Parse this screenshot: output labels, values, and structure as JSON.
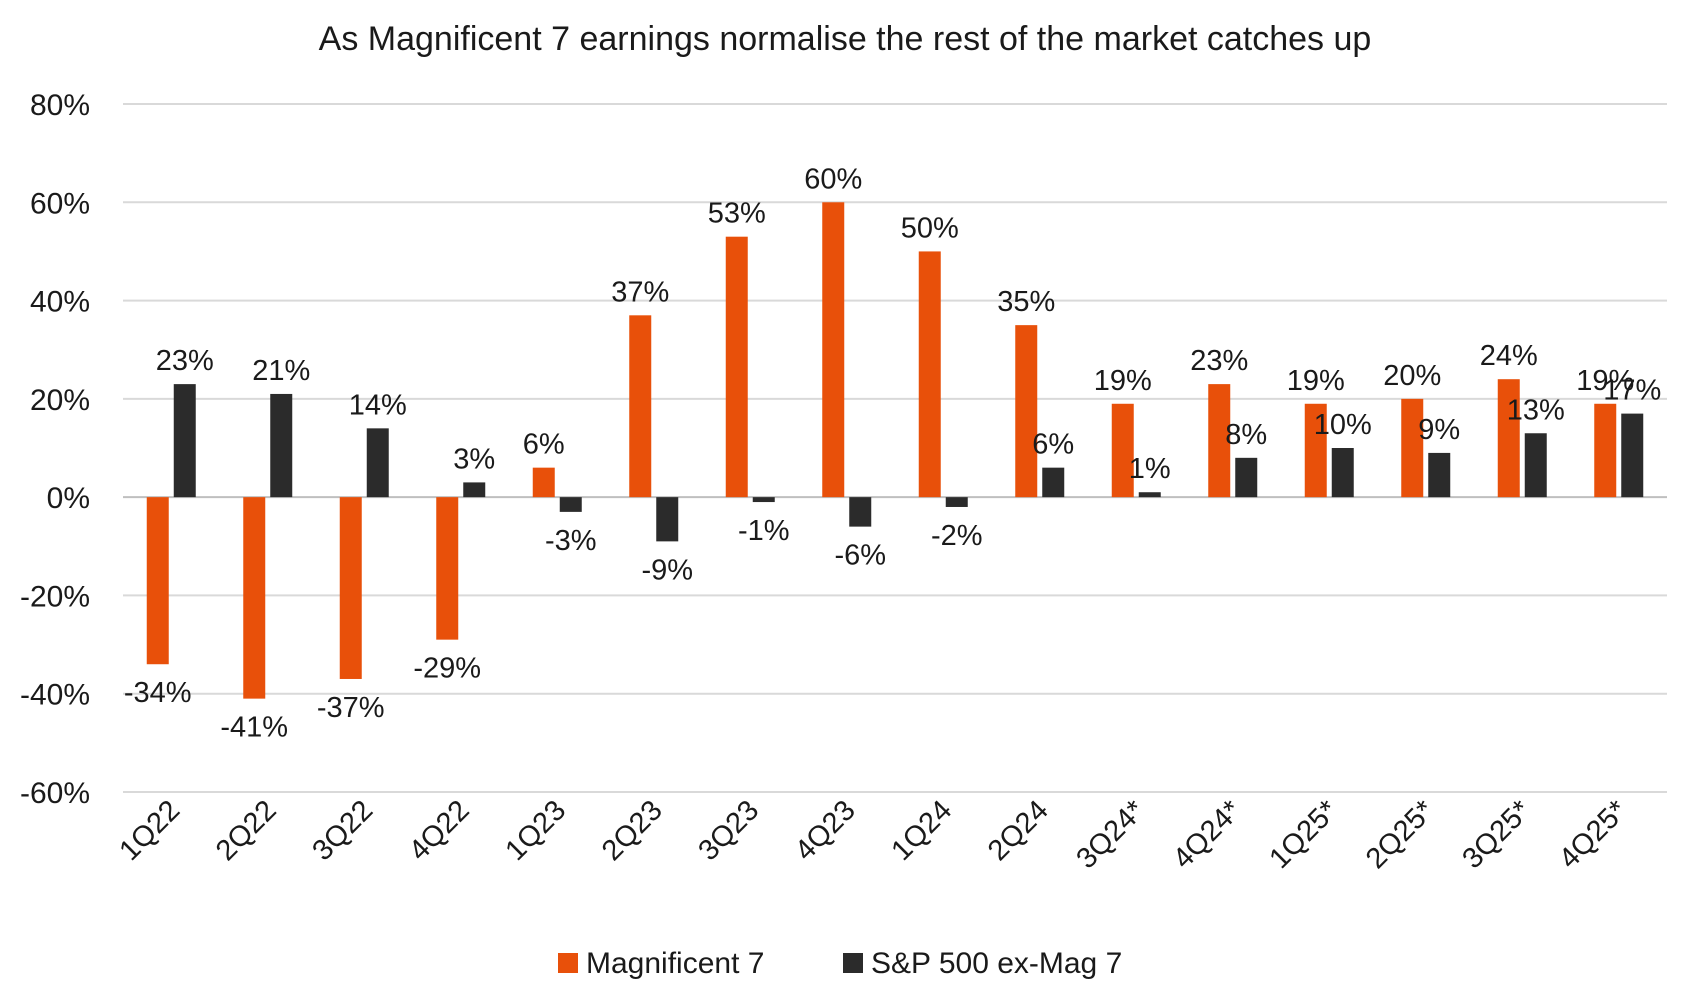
{
  "chart_data": {
    "type": "bar",
    "title": "As Magnificent 7 earnings normalise the rest of the market catches up",
    "categories": [
      "1Q22",
      "2Q22",
      "3Q22",
      "4Q22",
      "1Q23",
      "2Q23",
      "3Q23",
      "4Q23",
      "1Q24",
      "2Q24",
      "3Q24*",
      "4Q24*",
      "1Q25*",
      "2Q25*",
      "3Q25*",
      "4Q25*"
    ],
    "series": [
      {
        "name": "Magnificent 7",
        "color": "#e8500a",
        "values": [
          -34,
          -41,
          -37,
          -29,
          6,
          37,
          53,
          60,
          50,
          35,
          19,
          23,
          19,
          20,
          24,
          19
        ]
      },
      {
        "name": "S&P 500 ex-Mag 7",
        "color": "#2b2b2b",
        "values": [
          23,
          21,
          14,
          3,
          -3,
          -9,
          -1,
          -6,
          -2,
          6,
          1,
          8,
          10,
          9,
          13,
          17
        ]
      }
    ],
    "ylim": [
      -60,
      80
    ],
    "yticks": [
      -60,
      -40,
      -20,
      0,
      20,
      40,
      60,
      80
    ],
    "ytick_labels": [
      "-60%",
      "-40%",
      "-20%",
      "0%",
      "20%",
      "40%",
      "60%",
      "80%"
    ],
    "value_suffix": "%",
    "xlabel": "",
    "ylabel": "",
    "grid": true,
    "legend_position": "bottom-center"
  }
}
